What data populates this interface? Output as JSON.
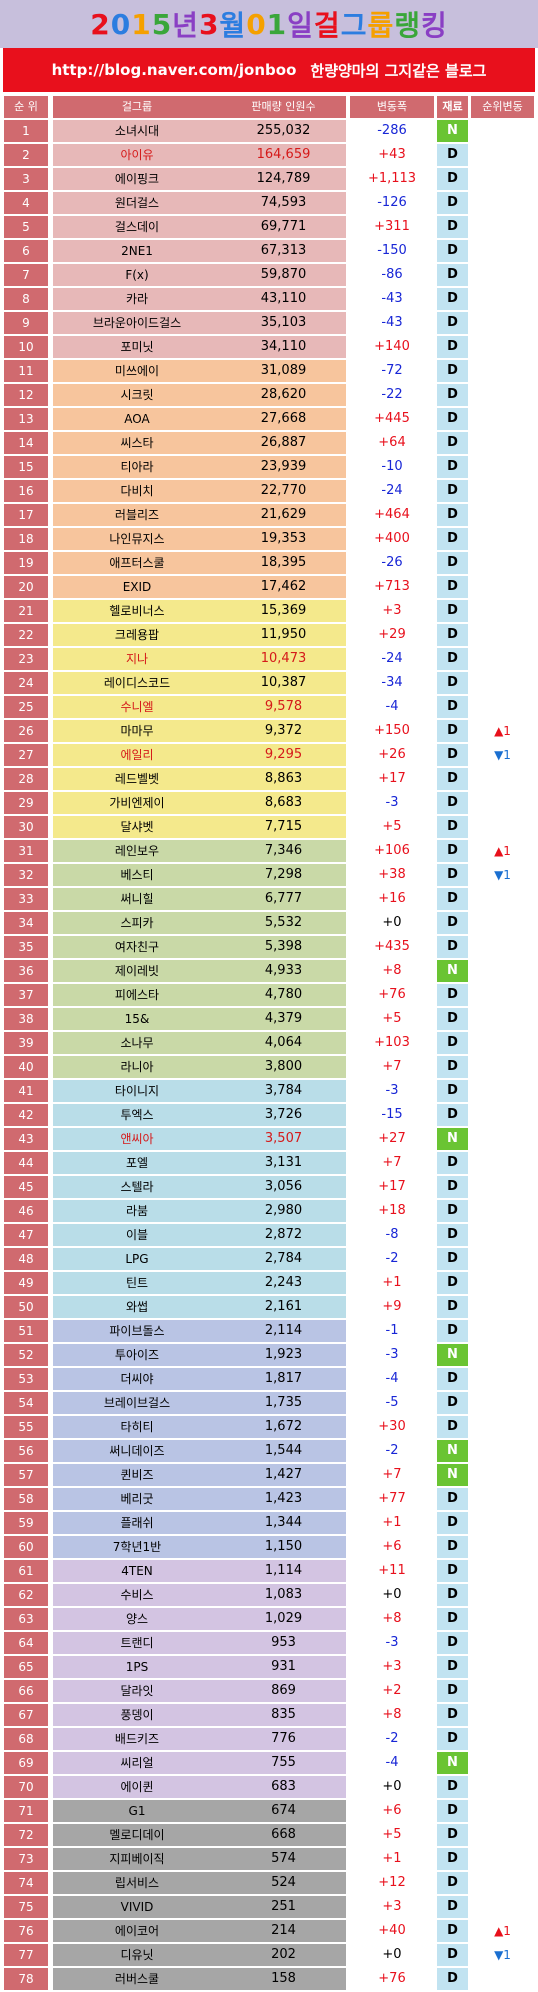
{
  "title": {
    "segments": [
      {
        "text": "2",
        "color": "#e8101c"
      },
      {
        "text": "0",
        "color": "#2c7de0"
      },
      {
        "text": "1",
        "color": "#f5a000"
      },
      {
        "text": "5",
        "color": "#3aa63a"
      },
      {
        "text": "년 ",
        "color": "#8a3fc4"
      },
      {
        "text": "3",
        "color": "#e8101c"
      },
      {
        "text": "월 ",
        "color": "#2c7de0"
      },
      {
        "text": "0",
        "color": "#f5a000"
      },
      {
        "text": "1",
        "color": "#3aa63a"
      },
      {
        "text": "일 ",
        "color": "#8a3fc4"
      },
      {
        "text": "걸",
        "color": "#e8101c"
      },
      {
        "text": "그",
        "color": "#2c7de0"
      },
      {
        "text": "룹",
        "color": "#f5a000"
      },
      {
        "text": "랭",
        "color": "#3aa63a"
      },
      {
        "text": "킹",
        "color": "#8a3fc4"
      }
    ]
  },
  "subtitle": {
    "url": "http://blog.naver.com/jonboo",
    "blog_name": "한량양마의 그지같은 블로그"
  },
  "headers": {
    "rank": "순 위",
    "name": "걸그룹",
    "sales": "판매량 인원수",
    "delta": "변동폭",
    "status": "재료",
    "move": "순위변동"
  },
  "colors": {
    "rank_bg": "#d06a6f",
    "row_bg_pink": "#e7b8b8",
    "row_bg_orange": "#f7c59d",
    "row_bg_yellow": "#f4e98c",
    "row_bg_green": "#c9d9a7",
    "row_bg_blue": "#b9dde8",
    "row_bg_periwinkle": "#b9c4e4",
    "row_bg_purple": "#d3c4e2",
    "row_bg_gray": "#a6a6a6",
    "positive": "#e8101c",
    "negative": "#1826d6",
    "status_D": "#c1e3f1",
    "status_N": "#6ac433"
  },
  "chart_data": {
    "type": "table",
    "columns": [
      "순 위",
      "걸그룹",
      "판매량 인원수",
      "변동폭",
      "재료",
      "순위변동"
    ],
    "rows": [
      {
        "rank": "1",
        "name": "소녀시대",
        "sales": "255,032",
        "delta": "-286",
        "status": "N",
        "move": "",
        "group": "pink"
      },
      {
        "rank": "2",
        "name": "아이유",
        "sales": "164,659",
        "delta": "+43",
        "status": "D",
        "move": "",
        "group": "pink",
        "highlight": true
      },
      {
        "rank": "3",
        "name": "에이핑크",
        "sales": "124,789",
        "delta": "+1,113",
        "status": "D",
        "move": "",
        "group": "pink"
      },
      {
        "rank": "4",
        "name": "원더걸스",
        "sales": "74,593",
        "delta": "-126",
        "status": "D",
        "move": "",
        "group": "pink"
      },
      {
        "rank": "5",
        "name": "걸스데이",
        "sales": "69,771",
        "delta": "+311",
        "status": "D",
        "move": "",
        "group": "pink"
      },
      {
        "rank": "6",
        "name": "2NE1",
        "sales": "67,313",
        "delta": "-150",
        "status": "D",
        "move": "",
        "group": "pink"
      },
      {
        "rank": "7",
        "name": "F(x)",
        "sales": "59,870",
        "delta": "-86",
        "status": "D",
        "move": "",
        "group": "pink"
      },
      {
        "rank": "8",
        "name": "카라",
        "sales": "43,110",
        "delta": "-43",
        "status": "D",
        "move": "",
        "group": "pink"
      },
      {
        "rank": "9",
        "name": "브라운아이드걸스",
        "sales": "35,103",
        "delta": "-43",
        "status": "D",
        "move": "",
        "group": "pink"
      },
      {
        "rank": "10",
        "name": "포미닛",
        "sales": "34,110",
        "delta": "+140",
        "status": "D",
        "move": "",
        "group": "pink"
      },
      {
        "rank": "11",
        "name": "미쓰에이",
        "sales": "31,089",
        "delta": "-72",
        "status": "D",
        "move": "",
        "group": "orange"
      },
      {
        "rank": "12",
        "name": "시크릿",
        "sales": "28,620",
        "delta": "-22",
        "status": "D",
        "move": "",
        "group": "orange"
      },
      {
        "rank": "13",
        "name": "AOA",
        "sales": "27,668",
        "delta": "+445",
        "status": "D",
        "move": "",
        "group": "orange"
      },
      {
        "rank": "14",
        "name": "씨스타",
        "sales": "26,887",
        "delta": "+64",
        "status": "D",
        "move": "",
        "group": "orange"
      },
      {
        "rank": "15",
        "name": "티아라",
        "sales": "23,939",
        "delta": "-10",
        "status": "D",
        "move": "",
        "group": "orange"
      },
      {
        "rank": "16",
        "name": "다비치",
        "sales": "22,770",
        "delta": "-24",
        "status": "D",
        "move": "",
        "group": "orange"
      },
      {
        "rank": "17",
        "name": "러블리즈",
        "sales": "21,629",
        "delta": "+464",
        "status": "D",
        "move": "",
        "group": "orange"
      },
      {
        "rank": "18",
        "name": "나인뮤지스",
        "sales": "19,353",
        "delta": "+400",
        "status": "D",
        "move": "",
        "group": "orange"
      },
      {
        "rank": "19",
        "name": "애프터스쿨",
        "sales": "18,395",
        "delta": "-26",
        "status": "D",
        "move": "",
        "group": "orange"
      },
      {
        "rank": "20",
        "name": "EXID",
        "sales": "17,462",
        "delta": "+713",
        "status": "D",
        "move": "",
        "group": "orange"
      },
      {
        "rank": "21",
        "name": "헬로비너스",
        "sales": "15,369",
        "delta": "+3",
        "status": "D",
        "move": "",
        "group": "yellow"
      },
      {
        "rank": "22",
        "name": "크레용팝",
        "sales": "11,950",
        "delta": "+29",
        "status": "D",
        "move": "",
        "group": "yellow"
      },
      {
        "rank": "23",
        "name": "지나",
        "sales": "10,473",
        "delta": "-24",
        "status": "D",
        "move": "",
        "group": "yellow",
        "highlight": true
      },
      {
        "rank": "24",
        "name": "레이디스코드",
        "sales": "10,387",
        "delta": "-34",
        "status": "D",
        "move": "",
        "group": "yellow"
      },
      {
        "rank": "25",
        "name": "수니엘",
        "sales": "9,578",
        "delta": "-4",
        "status": "D",
        "move": "",
        "group": "yellow",
        "highlight": true
      },
      {
        "rank": "26",
        "name": "마마무",
        "sales": "9,372",
        "delta": "+150",
        "status": "D",
        "move": "▲1",
        "group": "yellow"
      },
      {
        "rank": "27",
        "name": "에일리",
        "sales": "9,295",
        "delta": "+26",
        "status": "D",
        "move": "▼1",
        "group": "yellow",
        "highlight": true
      },
      {
        "rank": "28",
        "name": "레드벨벳",
        "sales": "8,863",
        "delta": "+17",
        "status": "D",
        "move": "",
        "group": "yellow"
      },
      {
        "rank": "29",
        "name": "가비엔제이",
        "sales": "8,683",
        "delta": "-3",
        "status": "D",
        "move": "",
        "group": "yellow"
      },
      {
        "rank": "30",
        "name": "달샤벳",
        "sales": "7,715",
        "delta": "+5",
        "status": "D",
        "move": "",
        "group": "yellow"
      },
      {
        "rank": "31",
        "name": "레인보우",
        "sales": "7,346",
        "delta": "+106",
        "status": "D",
        "move": "▲1",
        "group": "green"
      },
      {
        "rank": "32",
        "name": "베스티",
        "sales": "7,298",
        "delta": "+38",
        "status": "D",
        "move": "▼1",
        "group": "green"
      },
      {
        "rank": "33",
        "name": "써니힐",
        "sales": "6,777",
        "delta": "+16",
        "status": "D",
        "move": "",
        "group": "green"
      },
      {
        "rank": "34",
        "name": "스피카",
        "sales": "5,532",
        "delta": "+0",
        "status": "D",
        "move": "",
        "group": "green"
      },
      {
        "rank": "35",
        "name": "여자친구",
        "sales": "5,398",
        "delta": "+435",
        "status": "D",
        "move": "",
        "group": "green"
      },
      {
        "rank": "36",
        "name": "제이레빗",
        "sales": "4,933",
        "delta": "+8",
        "status": "N",
        "move": "",
        "group": "green"
      },
      {
        "rank": "37",
        "name": "피에스타",
        "sales": "4,780",
        "delta": "+76",
        "status": "D",
        "move": "",
        "group": "green"
      },
      {
        "rank": "38",
        "name": "15&",
        "sales": "4,379",
        "delta": "+5",
        "status": "D",
        "move": "",
        "group": "green"
      },
      {
        "rank": "39",
        "name": "소나무",
        "sales": "4,064",
        "delta": "+103",
        "status": "D",
        "move": "",
        "group": "green"
      },
      {
        "rank": "40",
        "name": "라니아",
        "sales": "3,800",
        "delta": "+7",
        "status": "D",
        "move": "",
        "group": "green"
      },
      {
        "rank": "41",
        "name": "타이니지",
        "sales": "3,784",
        "delta": "-3",
        "status": "D",
        "move": "",
        "group": "blue"
      },
      {
        "rank": "42",
        "name": "투엑스",
        "sales": "3,726",
        "delta": "-15",
        "status": "D",
        "move": "",
        "group": "blue"
      },
      {
        "rank": "43",
        "name": "앤씨아",
        "sales": "3,507",
        "delta": "+27",
        "status": "N",
        "move": "",
        "group": "blue",
        "highlight": true
      },
      {
        "rank": "44",
        "name": "포엘",
        "sales": "3,131",
        "delta": "+7",
        "status": "D",
        "move": "",
        "group": "blue"
      },
      {
        "rank": "45",
        "name": "스텔라",
        "sales": "3,056",
        "delta": "+17",
        "status": "D",
        "move": "",
        "group": "blue"
      },
      {
        "rank": "46",
        "name": "라붐",
        "sales": "2,980",
        "delta": "+18",
        "status": "D",
        "move": "",
        "group": "blue"
      },
      {
        "rank": "47",
        "name": "이블",
        "sales": "2,872",
        "delta": "-8",
        "status": "D",
        "move": "",
        "group": "blue"
      },
      {
        "rank": "48",
        "name": "LPG",
        "sales": "2,784",
        "delta": "-2",
        "status": "D",
        "move": "",
        "group": "blue"
      },
      {
        "rank": "49",
        "name": "틴트",
        "sales": "2,243",
        "delta": "+1",
        "status": "D",
        "move": "",
        "group": "blue"
      },
      {
        "rank": "50",
        "name": "와썹",
        "sales": "2,161",
        "delta": "+9",
        "status": "D",
        "move": "",
        "group": "blue"
      },
      {
        "rank": "51",
        "name": "파이브돌스",
        "sales": "2,114",
        "delta": "-1",
        "status": "D",
        "move": "",
        "group": "periwinkle"
      },
      {
        "rank": "52",
        "name": "투아이즈",
        "sales": "1,923",
        "delta": "-3",
        "status": "N",
        "move": "",
        "group": "periwinkle"
      },
      {
        "rank": "53",
        "name": "더씨야",
        "sales": "1,817",
        "delta": "-4",
        "status": "D",
        "move": "",
        "group": "periwinkle"
      },
      {
        "rank": "54",
        "name": "브레이브걸스",
        "sales": "1,735",
        "delta": "-5",
        "status": "D",
        "move": "",
        "group": "periwinkle"
      },
      {
        "rank": "55",
        "name": "타히티",
        "sales": "1,672",
        "delta": "+30",
        "status": "D",
        "move": "",
        "group": "periwinkle"
      },
      {
        "rank": "56",
        "name": "써니데이즈",
        "sales": "1,544",
        "delta": "-2",
        "status": "N",
        "move": "",
        "group": "periwinkle"
      },
      {
        "rank": "57",
        "name": "퀸비즈",
        "sales": "1,427",
        "delta": "+7",
        "status": "N",
        "move": "",
        "group": "periwinkle"
      },
      {
        "rank": "58",
        "name": "베리굿",
        "sales": "1,423",
        "delta": "+77",
        "status": "D",
        "move": "",
        "group": "periwinkle"
      },
      {
        "rank": "59",
        "name": "플래쉬",
        "sales": "1,344",
        "delta": "+1",
        "status": "D",
        "move": "",
        "group": "periwinkle"
      },
      {
        "rank": "60",
        "name": "7학년1반",
        "sales": "1,150",
        "delta": "+6",
        "status": "D",
        "move": "",
        "group": "periwinkle"
      },
      {
        "rank": "61",
        "name": "4TEN",
        "sales": "1,114",
        "delta": "+11",
        "status": "D",
        "move": "",
        "group": "purple"
      },
      {
        "rank": "62",
        "name": "수비스",
        "sales": "1,083",
        "delta": "+0",
        "status": "D",
        "move": "",
        "group": "purple"
      },
      {
        "rank": "63",
        "name": "양스",
        "sales": "1,029",
        "delta": "+8",
        "status": "D",
        "move": "",
        "group": "purple"
      },
      {
        "rank": "64",
        "name": "트랜디",
        "sales": "953",
        "delta": "-3",
        "status": "D",
        "move": "",
        "group": "purple"
      },
      {
        "rank": "65",
        "name": "1PS",
        "sales": "931",
        "delta": "+3",
        "status": "D",
        "move": "",
        "group": "purple"
      },
      {
        "rank": "66",
        "name": "달라잇",
        "sales": "869",
        "delta": "+2",
        "status": "D",
        "move": "",
        "group": "purple"
      },
      {
        "rank": "67",
        "name": "풍뎅이",
        "sales": "835",
        "delta": "+8",
        "status": "D",
        "move": "",
        "group": "purple"
      },
      {
        "rank": "68",
        "name": "배드키즈",
        "sales": "776",
        "delta": "-2",
        "status": "D",
        "move": "",
        "group": "purple"
      },
      {
        "rank": "69",
        "name": "씨리얼",
        "sales": "755",
        "delta": "-4",
        "status": "N",
        "move": "",
        "group": "purple"
      },
      {
        "rank": "70",
        "name": "에이퀸",
        "sales": "683",
        "delta": "+0",
        "status": "D",
        "move": "",
        "group": "purple"
      },
      {
        "rank": "71",
        "name": "G1",
        "sales": "674",
        "delta": "+6",
        "status": "D",
        "move": "",
        "group": "gray"
      },
      {
        "rank": "72",
        "name": "멜로디데이",
        "sales": "668",
        "delta": "+5",
        "status": "D",
        "move": "",
        "group": "gray"
      },
      {
        "rank": "73",
        "name": "지피베이직",
        "sales": "574",
        "delta": "+1",
        "status": "D",
        "move": "",
        "group": "gray"
      },
      {
        "rank": "74",
        "name": "립서비스",
        "sales": "524",
        "delta": "+12",
        "status": "D",
        "move": "",
        "group": "gray"
      },
      {
        "rank": "75",
        "name": "VIVID",
        "sales": "251",
        "delta": "+3",
        "status": "D",
        "move": "",
        "group": "gray"
      },
      {
        "rank": "76",
        "name": "에이코어",
        "sales": "214",
        "delta": "+40",
        "status": "D",
        "move": "▲1",
        "group": "gray"
      },
      {
        "rank": "77",
        "name": "디유닛",
        "sales": "202",
        "delta": "+0",
        "status": "D",
        "move": "▼1",
        "group": "gray"
      },
      {
        "rank": "78",
        "name": "러버스쿨",
        "sales": "158",
        "delta": "+76",
        "status": "D",
        "move": "",
        "group": "gray"
      }
    ]
  }
}
